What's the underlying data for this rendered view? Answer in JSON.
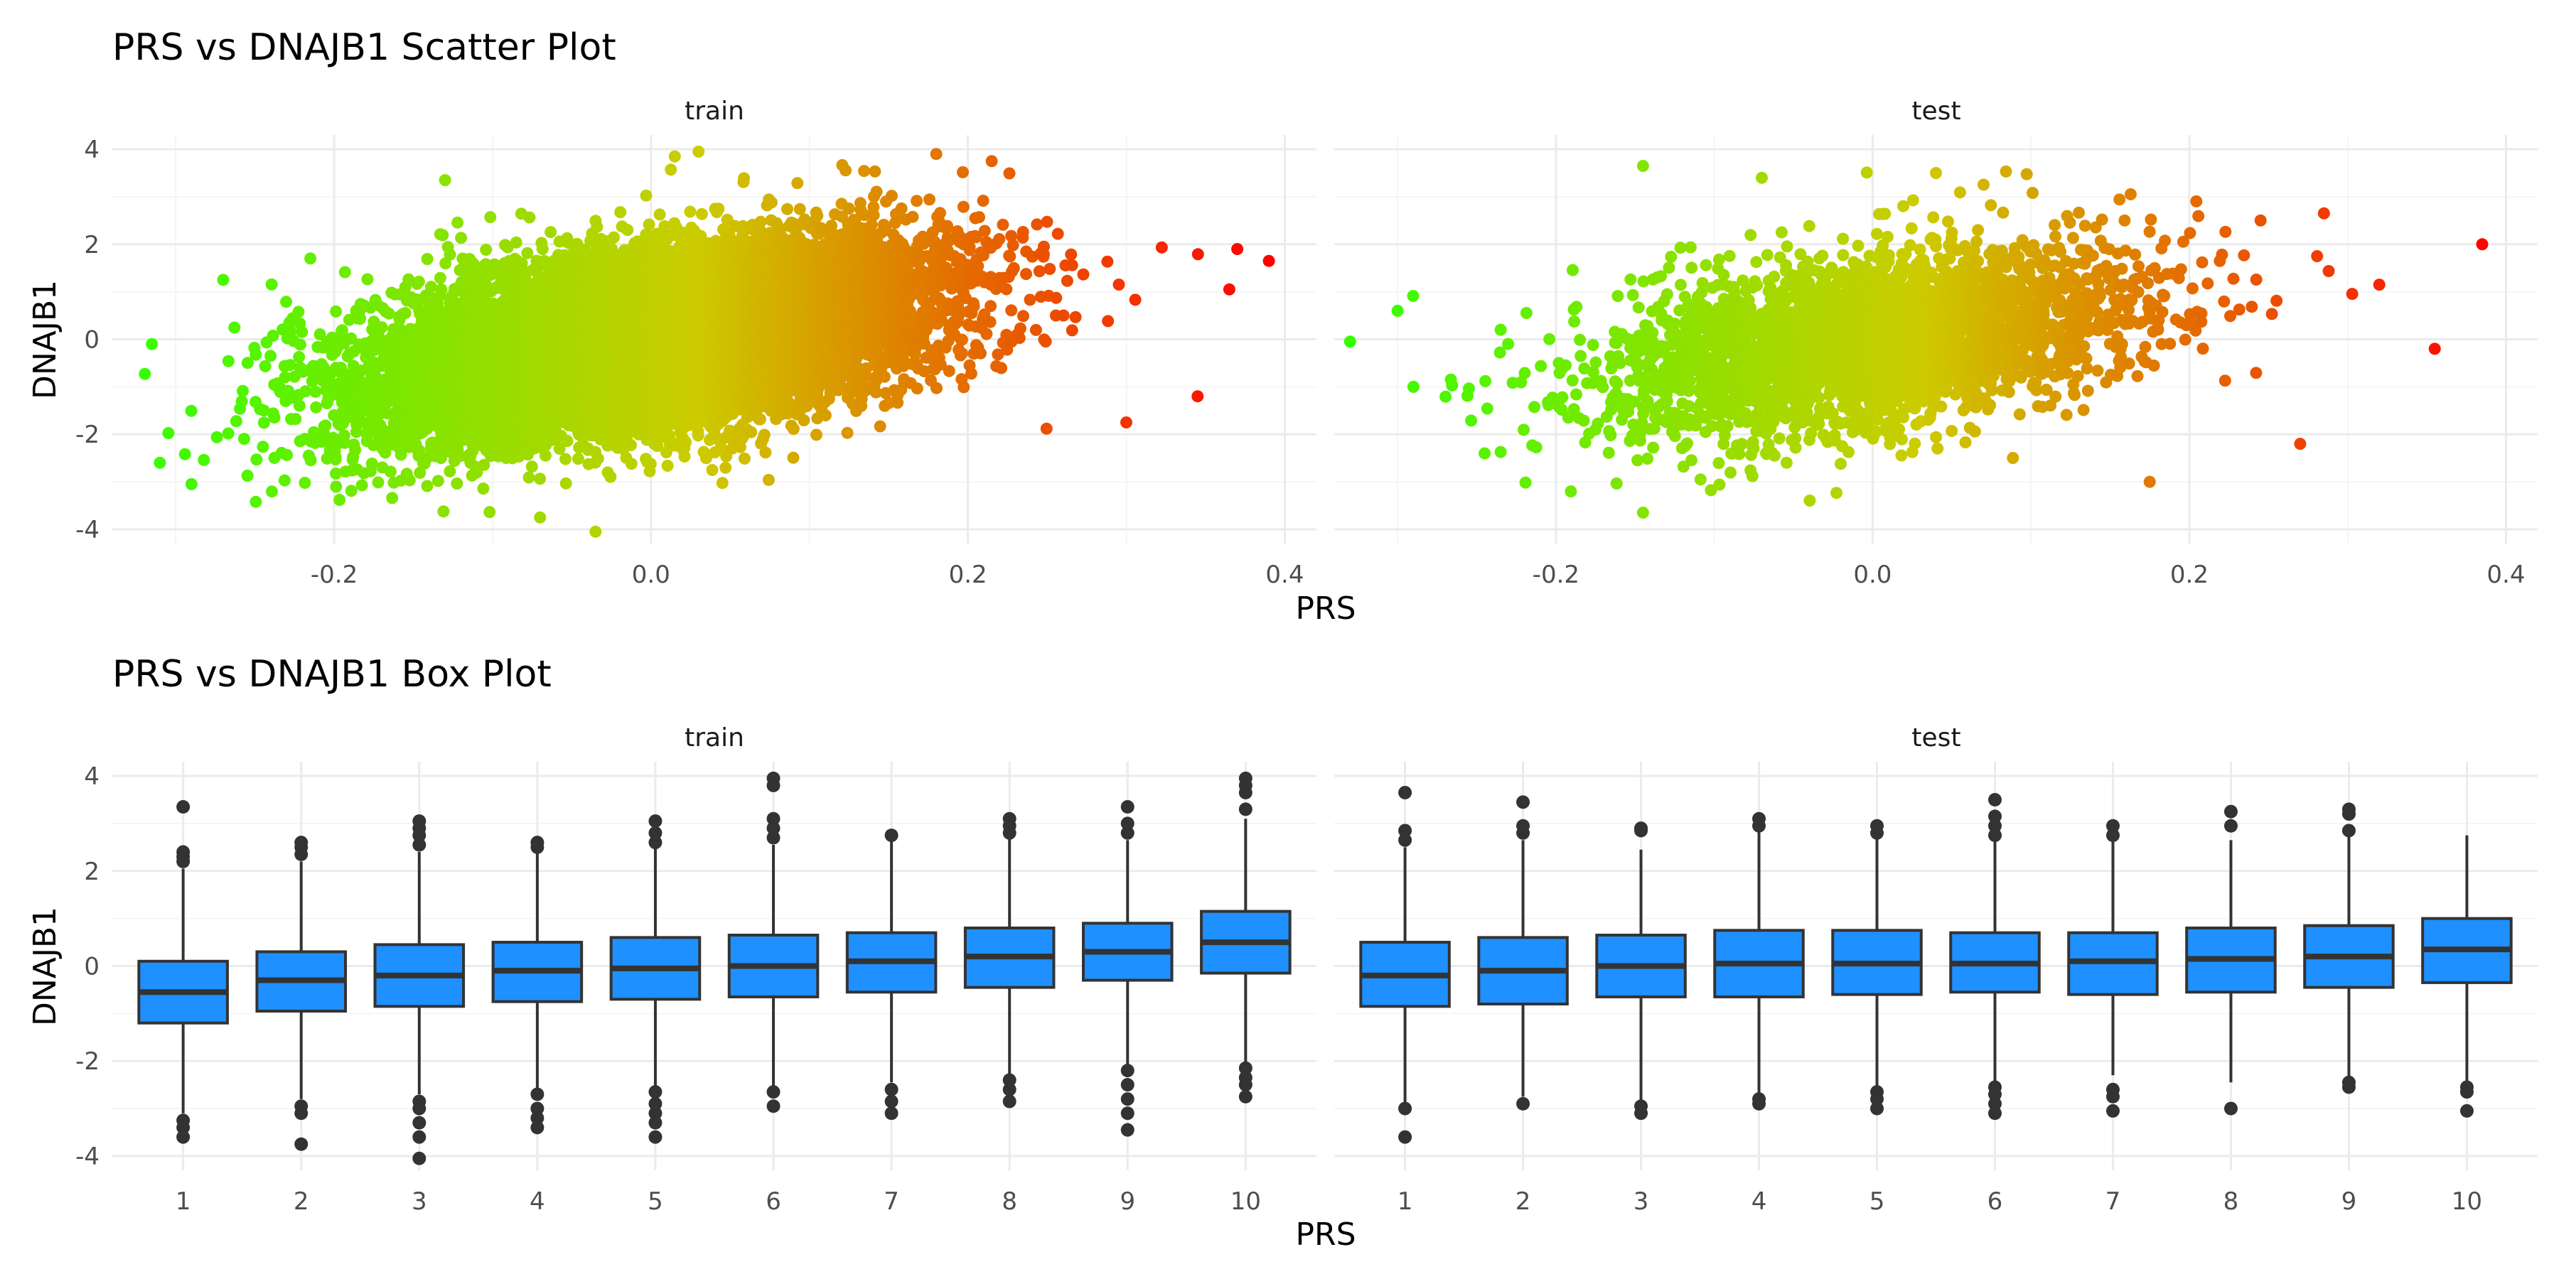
{
  "chart_data": [
    {
      "type": "scatter",
      "title": "PRS vs DNAJB1 Scatter Plot",
      "xlabel": "PRS",
      "ylabel": "DNAJB1",
      "xlim": [
        -0.34,
        0.42
      ],
      "ylim": [
        -4.3,
        4.3
      ],
      "x_ticks": [
        -0.2,
        0.0,
        0.2,
        0.4
      ],
      "x_tick_labels": [
        "-0.2",
        "0.0",
        "0.2",
        "0.4"
      ],
      "y_ticks": [
        -4,
        -2,
        0,
        2,
        4
      ],
      "y_tick_labels": [
        "-4",
        "-2",
        "0",
        "2",
        "4"
      ],
      "grid": true,
      "legend": "none",
      "color_scale": {
        "low": "#33ff00",
        "mid": "#cccc00",
        "high": "#ff0000",
        "mapped_to": "PRS"
      },
      "panels": [
        {
          "label": "train",
          "point_count_approx": 40000,
          "x_mean": 0.0,
          "x_sd": 0.085,
          "y_mean": 0.0,
          "y_sd": 1.0,
          "correlation": 0.45,
          "notable_points": [
            {
              "x": -0.315,
              "y": -0.1
            },
            {
              "x": -0.31,
              "y": -2.6
            },
            {
              "x": -0.29,
              "y": -3.05
            },
            {
              "x": -0.27,
              "y": 1.25
            },
            {
              "x": -0.215,
              "y": 1.7
            },
            {
              "x": -0.13,
              "y": 3.35
            },
            {
              "x": -0.07,
              "y": -3.75
            },
            {
              "x": -0.035,
              "y": -4.05
            },
            {
              "x": 0.015,
              "y": 3.85
            },
            {
              "x": 0.03,
              "y": 3.95
            },
            {
              "x": 0.18,
              "y": 3.9
            },
            {
              "x": 0.215,
              "y": 3.75
            },
            {
              "x": 0.345,
              "y": -1.2
            },
            {
              "x": 0.365,
              "y": 1.05
            },
            {
              "x": 0.37,
              "y": 1.9
            },
            {
              "x": 0.39,
              "y": 1.65
            },
            {
              "x": 0.3,
              "y": -1.75
            }
          ]
        },
        {
          "label": "test",
          "point_count_approx": 10000,
          "x_mean": 0.0,
          "x_sd": 0.085,
          "y_mean": 0.0,
          "y_sd": 1.0,
          "correlation": 0.4,
          "notable_points": [
            {
              "x": -0.33,
              "y": -0.05
            },
            {
              "x": -0.3,
              "y": 0.6
            },
            {
              "x": -0.29,
              "y": -1.0
            },
            {
              "x": -0.245,
              "y": -2.4
            },
            {
              "x": -0.145,
              "y": 3.65
            },
            {
              "x": -0.145,
              "y": -3.65
            },
            {
              "x": -0.07,
              "y": 3.4
            },
            {
              "x": 0.04,
              "y": 3.5
            },
            {
              "x": 0.175,
              "y": -3.0
            },
            {
              "x": 0.245,
              "y": 2.5
            },
            {
              "x": 0.285,
              "y": 2.65
            },
            {
              "x": 0.27,
              "y": -2.2
            },
            {
              "x": 0.355,
              "y": -0.2
            },
            {
              "x": 0.385,
              "y": 2.0
            },
            {
              "x": 0.32,
              "y": 1.15
            }
          ]
        }
      ]
    },
    {
      "type": "box",
      "title": "PRS vs DNAJB1 Box Plot",
      "xlabel": "PRS",
      "ylabel": "DNAJB1",
      "categories": [
        "1",
        "2",
        "3",
        "4",
        "5",
        "6",
        "7",
        "8",
        "9",
        "10"
      ],
      "ylim": [
        -4.3,
        4.3
      ],
      "y_ticks": [
        -4,
        -2,
        0,
        2,
        4
      ],
      "y_tick_labels": [
        "-4",
        "-2",
        "0",
        "2",
        "4"
      ],
      "grid": true,
      "box_fill": "#1e90ff",
      "box_stroke": "#333333",
      "panels": [
        {
          "label": "train",
          "boxes": [
            {
              "q1": -1.2,
              "median": -0.55,
              "q3": 0.1,
              "lower": -3.1,
              "upper": 2.05,
              "outliers": [
                -3.25,
                -3.4,
                -3.6,
                2.2,
                2.3,
                2.4,
                3.35
              ]
            },
            {
              "q1": -0.95,
              "median": -0.3,
              "q3": 0.3,
              "lower": -2.8,
              "upper": 2.2,
              "outliers": [
                -2.95,
                -3.1,
                -3.75,
                2.35,
                2.5,
                2.6
              ]
            },
            {
              "q1": -0.85,
              "median": -0.2,
              "q3": 0.45,
              "lower": -2.7,
              "upper": 2.4,
              "outliers": [
                -2.85,
                -3.0,
                -3.3,
                -3.6,
                -4.05,
                2.55,
                2.75,
                2.9,
                3.05
              ]
            },
            {
              "q1": -0.75,
              "median": -0.1,
              "q3": 0.5,
              "lower": -2.6,
              "upper": 2.4,
              "outliers": [
                -2.7,
                -3.0,
                -3.2,
                -3.4,
                2.5,
                2.6
              ]
            },
            {
              "q1": -0.7,
              "median": -0.05,
              "q3": 0.6,
              "lower": -2.55,
              "upper": 2.5,
              "outliers": [
                -2.65,
                -2.9,
                -3.1,
                -3.3,
                -3.6,
                2.6,
                2.8,
                3.05
              ]
            },
            {
              "q1": -0.65,
              "median": 0.0,
              "q3": 0.65,
              "lower": -2.55,
              "upper": 2.55,
              "outliers": [
                -2.65,
                -2.95,
                2.7,
                2.9,
                3.1,
                3.8,
                3.95
              ]
            },
            {
              "q1": -0.55,
              "median": 0.1,
              "q3": 0.7,
              "lower": -2.45,
              "upper": 2.65,
              "outliers": [
                -2.6,
                -2.85,
                -3.1,
                2.75
              ]
            },
            {
              "q1": -0.45,
              "median": 0.2,
              "q3": 0.8,
              "lower": -2.3,
              "upper": 2.7,
              "outliers": [
                -2.4,
                -2.6,
                -2.85,
                2.8,
                2.95,
                3.1
              ]
            },
            {
              "q1": -0.3,
              "median": 0.3,
              "q3": 0.9,
              "lower": -2.1,
              "upper": 2.65,
              "outliers": [
                -2.2,
                -2.5,
                -2.8,
                -3.1,
                -3.45,
                2.8,
                3.0,
                3.35
              ]
            },
            {
              "q1": -0.15,
              "median": 0.5,
              "q3": 1.15,
              "lower": -2.05,
              "upper": 3.1,
              "outliers": [
                -2.15,
                -2.35,
                -2.5,
                -2.75,
                3.3,
                3.65,
                3.8,
                3.95
              ]
            }
          ]
        },
        {
          "label": "test",
          "boxes": [
            {
              "q1": -0.85,
              "median": -0.2,
              "q3": 0.5,
              "lower": -2.9,
              "upper": 2.5,
              "outliers": [
                -3.0,
                -3.6,
                2.65,
                2.85,
                3.65
              ]
            },
            {
              "q1": -0.8,
              "median": -0.1,
              "q3": 0.6,
              "lower": -2.75,
              "upper": 2.65,
              "outliers": [
                -2.9,
                2.8,
                2.95,
                3.45
              ]
            },
            {
              "q1": -0.65,
              "median": 0.0,
              "q3": 0.65,
              "lower": -2.85,
              "upper": 2.45,
              "outliers": [
                -2.95,
                -3.1,
                2.85,
                2.9
              ]
            },
            {
              "q1": -0.65,
              "median": 0.05,
              "q3": 0.75,
              "lower": -2.75,
              "upper": 2.85,
              "outliers": [
                -2.8,
                -2.9,
                2.95,
                3.1
              ]
            },
            {
              "q1": -0.6,
              "median": 0.05,
              "q3": 0.75,
              "lower": -2.55,
              "upper": 2.7,
              "outliers": [
                -2.65,
                -2.8,
                -3.0,
                2.8,
                2.95
              ]
            },
            {
              "q1": -0.55,
              "median": 0.05,
              "q3": 0.7,
              "lower": -2.45,
              "upper": 2.65,
              "outliers": [
                -2.55,
                -2.7,
                -2.9,
                -3.1,
                2.75,
                2.95,
                3.15,
                3.5
              ]
            },
            {
              "q1": -0.6,
              "median": 0.1,
              "q3": 0.7,
              "lower": -2.3,
              "upper": 2.65,
              "outliers": [
                -2.6,
                -2.75,
                -3.05,
                2.75,
                2.95
              ]
            },
            {
              "q1": -0.55,
              "median": 0.15,
              "q3": 0.8,
              "lower": -2.45,
              "upper": 2.65,
              "outliers": [
                -3.0,
                2.95,
                3.25
              ]
            },
            {
              "q1": -0.45,
              "median": 0.2,
              "q3": 0.85,
              "lower": -2.35,
              "upper": 2.75,
              "outliers": [
                -2.45,
                -2.55,
                2.85,
                3.2,
                3.3
              ]
            },
            {
              "q1": -0.35,
              "median": 0.35,
              "q3": 1.0,
              "lower": -2.45,
              "upper": 2.75,
              "outliers": [
                -2.55,
                -2.65,
                -3.05
              ]
            }
          ]
        }
      ]
    }
  ]
}
